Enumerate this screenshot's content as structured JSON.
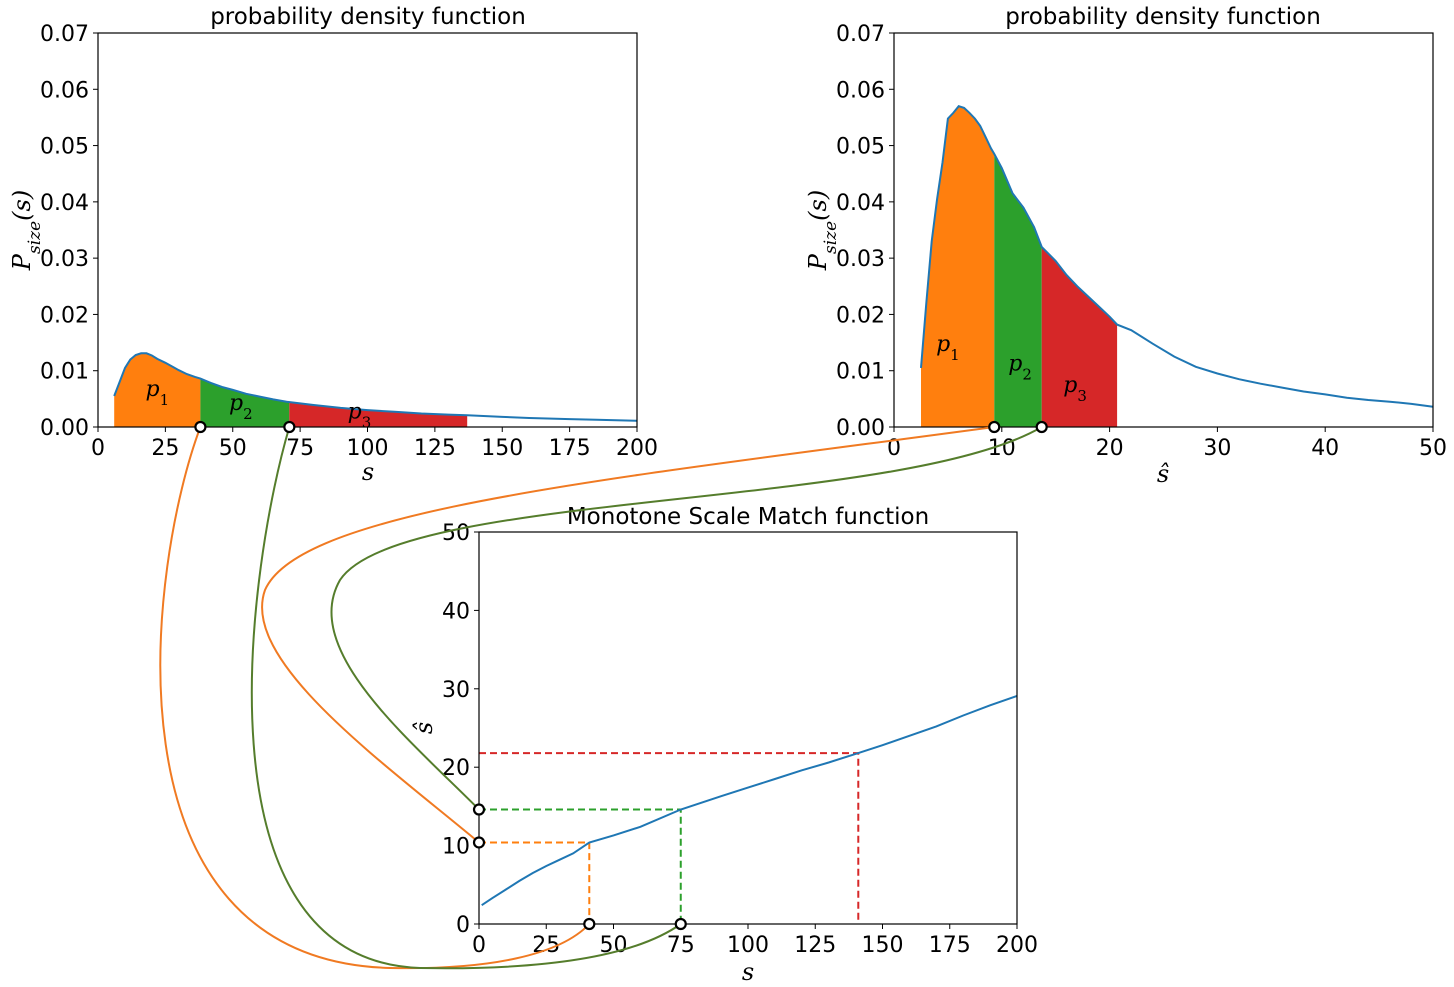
{
  "colors": {
    "curve": "#1f77b4",
    "p1": "#ff7f0e",
    "p2": "#2ca02c",
    "p3": "#d62728",
    "link_orange": "#f07a22",
    "link_green": "#557d2c"
  },
  "chart_data": [
    {
      "id": "pdf_source",
      "type": "area",
      "title": "probability density function",
      "xlabel": "s",
      "ylabel": "P_size(s)",
      "ylabel_main": "P",
      "ylabel_sub": "size",
      "ylabel_tail": "(s)",
      "xlim": [
        0,
        200
      ],
      "ylim": [
        0,
        0.07
      ],
      "xticks": [
        0,
        25,
        50,
        75,
        100,
        125,
        150,
        175,
        200
      ],
      "yticks": [
        "0.00",
        "0.01",
        "0.02",
        "0.03",
        "0.04",
        "0.05",
        "0.06",
        "0.07"
      ],
      "curve": {
        "x": [
          6,
          8,
          10,
          12,
          14,
          16,
          18,
          20,
          22,
          25,
          28,
          30,
          33,
          36,
          38,
          42,
          46,
          50,
          55,
          60,
          65,
          70,
          75,
          80,
          90,
          100,
          110,
          120,
          130,
          137,
          150,
          160,
          175,
          185,
          200
        ],
        "y": [
          0.0055,
          0.008,
          0.0105,
          0.012,
          0.0128,
          0.0131,
          0.0131,
          0.0127,
          0.0121,
          0.0114,
          0.0106,
          0.0101,
          0.0094,
          0.0089,
          0.0086,
          0.0078,
          0.0071,
          0.0066,
          0.0059,
          0.0054,
          0.0049,
          0.0045,
          0.0042,
          0.0039,
          0.0034,
          0.003,
          0.0027,
          0.0024,
          0.0022,
          0.0021,
          0.0018,
          0.0016,
          0.0014,
          0.0013,
          0.0011
        ]
      },
      "bands": [
        {
          "name": "p",
          "sub": "1",
          "x0": 6,
          "x1": 38,
          "label_x": 22,
          "label_y": 0.0055
        },
        {
          "name": "p",
          "sub": "2",
          "x0": 38,
          "x1": 71,
          "label_x": 53,
          "label_y": 0.003
        },
        {
          "name": "p",
          "sub": "3",
          "x0": 71,
          "x1": 137,
          "label_x": 97,
          "label_y": 0.0015
        }
      ],
      "markers_x": [
        38,
        71
      ]
    },
    {
      "id": "pdf_target",
      "type": "area",
      "title": "probability density function",
      "xlabel": "ŝ",
      "ylabel": "P_size(s)",
      "ylabel_main": "P",
      "ylabel_sub": "size",
      "ylabel_tail": "(s)",
      "xlim": [
        0,
        50
      ],
      "ylim": [
        0,
        0.07
      ],
      "xticks": [
        0,
        10,
        20,
        30,
        40,
        50
      ],
      "yticks": [
        "0.00",
        "0.01",
        "0.02",
        "0.03",
        "0.04",
        "0.05",
        "0.06",
        "0.07"
      ],
      "curve": {
        "x": [
          2.5,
          3,
          3.5,
          4,
          4.5,
          5,
          5.5,
          6,
          6.5,
          7,
          7.5,
          8,
          8.5,
          9,
          9.3,
          10,
          11,
          12,
          13,
          13.7,
          15,
          16,
          17,
          18,
          19,
          20,
          20.7,
          22,
          24,
          26,
          28,
          30,
          32,
          34,
          36,
          38,
          40,
          42,
          44,
          46,
          48,
          50
        ],
        "y": [
          0.0105,
          0.022,
          0.033,
          0.0405,
          0.047,
          0.0548,
          0.0558,
          0.057,
          0.0567,
          0.0558,
          0.0548,
          0.0535,
          0.0515,
          0.0495,
          0.0485,
          0.046,
          0.0415,
          0.039,
          0.0355,
          0.032,
          0.0295,
          0.027,
          0.025,
          0.0232,
          0.0214,
          0.0196,
          0.0182,
          0.0172,
          0.0148,
          0.0125,
          0.0107,
          0.0095,
          0.0085,
          0.0077,
          0.007,
          0.0063,
          0.0058,
          0.0052,
          0.0048,
          0.0045,
          0.0041,
          0.0036
        ]
      },
      "bands": [
        {
          "name": "p",
          "sub": "1",
          "x0": 2.5,
          "x1": 9.3,
          "label_x": 5,
          "label_y": 0.0135
        },
        {
          "name": "p",
          "sub": "2",
          "x0": 9.3,
          "x1": 13.7,
          "label_x": 11.7,
          "label_y": 0.01
        },
        {
          "name": "p",
          "sub": "3",
          "x0": 13.7,
          "x1": 20.7,
          "label_x": 16.8,
          "label_y": 0.0062
        }
      ],
      "markers_x": [
        9.3,
        13.7
      ]
    },
    {
      "id": "mapping",
      "type": "line",
      "title": "Monotone Scale Match function",
      "xlabel": "s",
      "ylabel": "ŝ",
      "xlim": [
        0,
        200
      ],
      "ylim": [
        0,
        50
      ],
      "xticks": [
        0,
        25,
        50,
        75,
        100,
        125,
        150,
        175,
        200
      ],
      "yticks": [
        0,
        10,
        20,
        30,
        40,
        50
      ],
      "curve": {
        "x": [
          1,
          5,
          10,
          15,
          20,
          25,
          30,
          35,
          41,
          50,
          60,
          75,
          90,
          100,
          110,
          120,
          130,
          141,
          150,
          160,
          170,
          180,
          190,
          200
        ],
        "y": [
          2.4,
          3.3,
          4.4,
          5.5,
          6.5,
          7.4,
          8.2,
          9.0,
          10.4,
          11.3,
          12.4,
          14.6,
          16.3,
          17.4,
          18.5,
          19.6,
          20.6,
          21.8,
          22.8,
          24.0,
          25.2,
          26.6,
          27.9,
          29.1
        ]
      },
      "guides": [
        {
          "color": "p1",
          "x": 41,
          "y": 10.4
        },
        {
          "color": "p2",
          "x": 75,
          "y": 14.6
        },
        {
          "color": "p3",
          "x": 141,
          "y": 21.8
        }
      ]
    }
  ]
}
